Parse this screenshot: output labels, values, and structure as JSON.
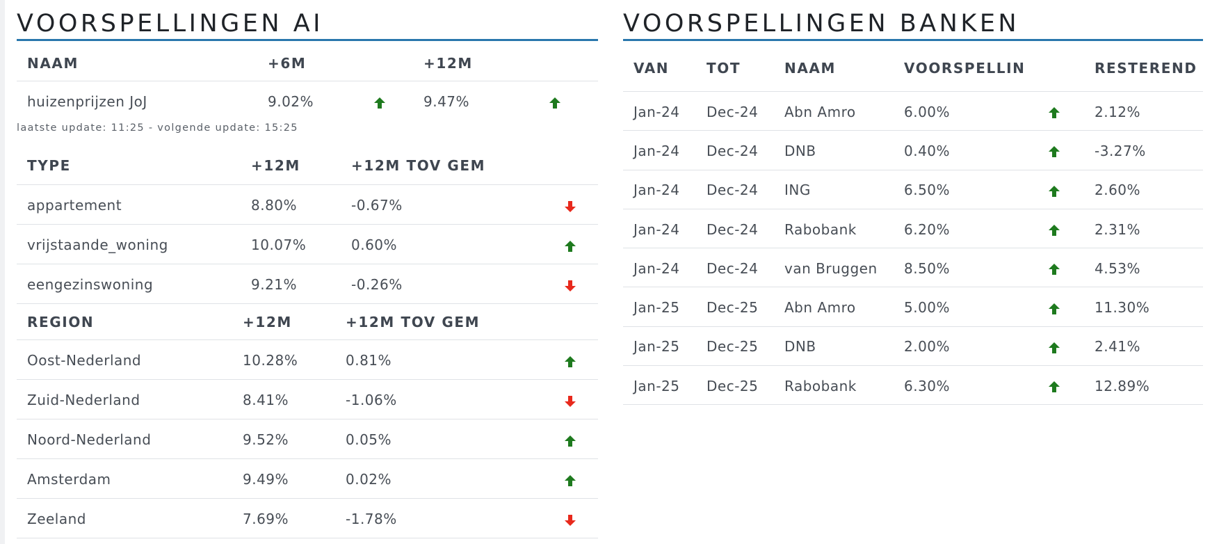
{
  "colors": {
    "accent": "#2a77ad",
    "up": "#1e7a1e",
    "down": "#e8291c"
  },
  "ai": {
    "title": "VOORSPELLINGEN AI",
    "summary": {
      "headers": [
        "NAAM",
        "+6M",
        "+12M"
      ],
      "row": {
        "name": "huizenprijzen JoJ",
        "m6": "9.02%",
        "m6_trend": "up",
        "m12": "9.47%",
        "m12_trend": "up"
      }
    },
    "update_note": "laatste update: 11:25 - volgende update: 15:25",
    "types": {
      "headers": [
        "TYPE",
        "+12M",
        "+12M TOV GEM"
      ],
      "rows": [
        {
          "name": "appartement",
          "m12": "8.80%",
          "vs_avg": "-0.67%",
          "trend": "down"
        },
        {
          "name": "vrijstaande_woning",
          "m12": "10.07%",
          "vs_avg": "0.60%",
          "trend": "up"
        },
        {
          "name": "eengezinswoning",
          "m12": "9.21%",
          "vs_avg": "-0.26%",
          "trend": "down"
        }
      ]
    },
    "regions": {
      "headers": [
        "REGION",
        "+12M",
        "+12M TOV GEM"
      ],
      "rows": [
        {
          "name": "Oost-Nederland",
          "m12": "10.28%",
          "vs_avg": "0.81%",
          "trend": "up"
        },
        {
          "name": "Zuid-Nederland",
          "m12": "8.41%",
          "vs_avg": "-1.06%",
          "trend": "down"
        },
        {
          "name": "Noord-Nederland",
          "m12": "9.52%",
          "vs_avg": "0.05%",
          "trend": "up"
        },
        {
          "name": "Amsterdam",
          "m12": "9.49%",
          "vs_avg": "0.02%",
          "trend": "up"
        },
        {
          "name": "Zeeland",
          "m12": "7.69%",
          "vs_avg": "-1.78%",
          "trend": "down"
        }
      ]
    }
  },
  "banks": {
    "title": "VOORSPELLINGEN BANKEN",
    "headers": [
      "VAN",
      "TOT",
      "NAAM",
      "VOORSPELLING",
      "RESTEREND"
    ],
    "rows": [
      {
        "from": "Jan-24",
        "to": "Dec-24",
        "name": "Abn Amro",
        "forecast": "6.00%",
        "trend": "up",
        "remaining": "2.12%"
      },
      {
        "from": "Jan-24",
        "to": "Dec-24",
        "name": "DNB",
        "forecast": "0.40%",
        "trend": "up",
        "remaining": "-3.27%"
      },
      {
        "from": "Jan-24",
        "to": "Dec-24",
        "name": "ING",
        "forecast": "6.50%",
        "trend": "up",
        "remaining": "2.60%"
      },
      {
        "from": "Jan-24",
        "to": "Dec-24",
        "name": "Rabobank",
        "forecast": "6.20%",
        "trend": "up",
        "remaining": "2.31%"
      },
      {
        "from": "Jan-24",
        "to": "Dec-24",
        "name": "van Bruggen",
        "forecast": "8.50%",
        "trend": "up",
        "remaining": "4.53%"
      },
      {
        "from": "Jan-25",
        "to": "Dec-25",
        "name": "Abn Amro",
        "forecast": "5.00%",
        "trend": "up",
        "remaining": "11.30%"
      },
      {
        "from": "Jan-25",
        "to": "Dec-25",
        "name": "DNB",
        "forecast": "2.00%",
        "trend": "up",
        "remaining": "2.41%"
      },
      {
        "from": "Jan-25",
        "to": "Dec-25",
        "name": "Rabobank",
        "forecast": "6.30%",
        "trend": "up",
        "remaining": "12.89%"
      }
    ]
  }
}
